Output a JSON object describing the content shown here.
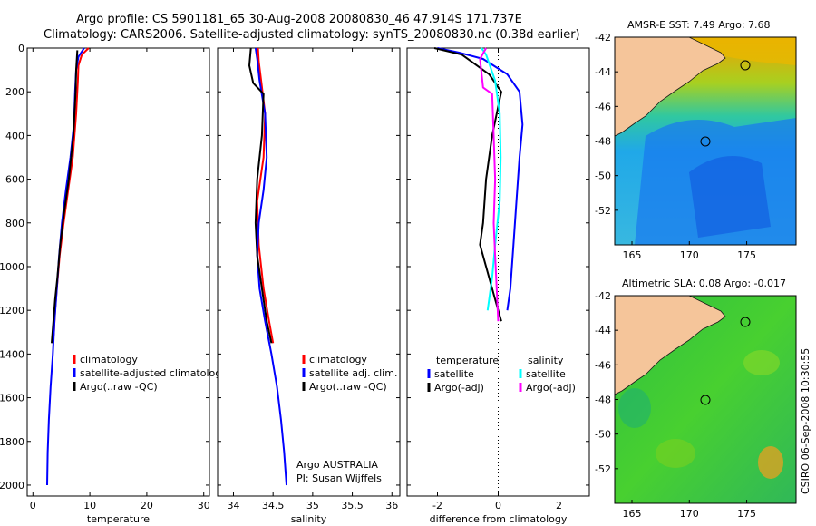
{
  "title": {
    "line1": "Argo profile: CS 5901181_65 30-Aug-2008 20080830_46 47.914S 171.737E",
    "line2": "Climatology: CARS2006. Satellite-adjusted climatology: synTS_20080830.nc (0.38d earlier)"
  },
  "stamp": "CSIRO 06-Sep-2008 10:30:55",
  "colors": {
    "climatology": "#ff0000",
    "satellite": "#0000ff",
    "argo": "#000000",
    "salinity_satellite": "#00ffff",
    "salinity_argo": "#ff00ff"
  },
  "chart_data": [
    {
      "type": "line",
      "name": "temperature-profile",
      "xlabel": "temperature",
      "ylabel": "",
      "xlim": [
        -1,
        31
      ],
      "ylim": [
        2050,
        0
      ],
      "xticks": [
        "0",
        "10",
        "20",
        "30"
      ],
      "xtick_values": [
        0,
        10,
        20,
        30
      ],
      "yticks": [
        "0",
        "200",
        "400",
        "600",
        "800",
        "1000",
        "1200",
        "1400",
        "1600",
        "1800",
        "2000"
      ],
      "ytick_values": [
        0,
        200,
        400,
        600,
        800,
        1000,
        1200,
        1400,
        1600,
        1800,
        2000
      ],
      "legend": [
        "climatology",
        "satellite-adjusted climatology",
        "Argo(..raw -QC)"
      ],
      "series": [
        {
          "name": "climatology",
          "color": "#ff0000",
          "x": [
            9.8,
            8.6,
            8.0,
            7.9,
            7.6,
            7.0,
            6.2,
            5.4,
            4.7,
            4.2,
            3.9,
            3.7,
            3.5
          ],
          "y": [
            0,
            30,
            80,
            150,
            300,
            500,
            650,
            800,
            950,
            1100,
            1200,
            1300,
            1350
          ]
        },
        {
          "name": "satellite-adjusted climatology",
          "color": "#0000ff",
          "x": [
            9.0,
            8.0,
            7.6,
            7.4,
            7.2,
            6.6,
            5.8,
            5.1,
            4.6,
            4.2,
            3.8,
            3.5,
            3.1,
            2.8,
            2.6,
            2.5
          ],
          "y": [
            0,
            40,
            100,
            200,
            350,
            500,
            650,
            800,
            950,
            1100,
            1250,
            1400,
            1550,
            1700,
            1850,
            2000
          ]
        },
        {
          "name": "Argo(..raw -QC)",
          "color": "#000000",
          "x": [
            7.8,
            7.6,
            7.5,
            7.1,
            6.3,
            5.5,
            4.8,
            4.3,
            3.9,
            3.6,
            3.3
          ],
          "y": [
            10,
            100,
            200,
            400,
            600,
            750,
            900,
            1050,
            1150,
            1250,
            1350
          ]
        }
      ]
    },
    {
      "type": "line",
      "name": "salinity-profile",
      "xlabel": "salinity",
      "ylabel": "",
      "xlim": [
        33.8,
        36.1
      ],
      "ylim": [
        2050,
        0
      ],
      "xticks": [
        "34",
        "34.5",
        "35",
        "35.5",
        "36"
      ],
      "xtick_values": [
        34,
        34.5,
        35,
        35.5,
        36
      ],
      "legend": [
        "climatology",
        "satellite adj. clim.",
        "Argo(..raw -QC)"
      ],
      "annotation": [
        "Argo AUSTRALIA",
        "PI: Susan Wijffels"
      ],
      "series": [
        {
          "name": "climatology",
          "color": "#ff0000",
          "x": [
            34.31,
            34.32,
            34.35,
            34.4,
            34.38,
            34.3,
            34.32,
            34.38,
            34.45,
            34.5
          ],
          "y": [
            0,
            60,
            150,
            300,
            500,
            700,
            900,
            1100,
            1250,
            1350
          ]
        },
        {
          "name": "satellite adj. clim.",
          "color": "#0000ff",
          "x": [
            34.28,
            34.3,
            34.33,
            34.4,
            34.42,
            34.38,
            34.32,
            34.3,
            34.33,
            34.4,
            34.48,
            34.55,
            34.6,
            34.64,
            34.67
          ],
          "y": [
            0,
            50,
            150,
            300,
            500,
            650,
            800,
            950,
            1100,
            1250,
            1400,
            1550,
            1700,
            1850,
            2000
          ]
        },
        {
          "name": "Argo(..raw -QC)",
          "color": "#000000",
          "x": [
            34.22,
            34.2,
            34.25,
            34.38,
            34.36,
            34.3,
            34.28,
            34.3,
            34.36,
            34.42,
            34.48
          ],
          "y": [
            0,
            80,
            160,
            210,
            400,
            600,
            800,
            950,
            1100,
            1250,
            1350
          ]
        }
      ]
    },
    {
      "type": "line",
      "name": "difference-profile",
      "xlabel": "difference from climatology",
      "ylabel": "",
      "xlim": [
        -3,
        3
      ],
      "ylim": [
        2050,
        0
      ],
      "xticks": [
        "-2",
        "0",
        "2"
      ],
      "xtick_values": [
        -2,
        0,
        2
      ],
      "legend_headers": [
        "temperature",
        "salinity"
      ],
      "legend": [
        "satellite",
        "Argo(-adj)",
        "satellite",
        "Argo(-adj)"
      ],
      "series": [
        {
          "name": "temperature satellite",
          "color": "#0000ff",
          "x": [
            -2.0,
            -1.3,
            -0.5,
            0.3,
            0.7,
            0.8,
            0.7,
            0.6,
            0.5,
            0.4,
            0.3
          ],
          "y": [
            0,
            20,
            50,
            120,
            200,
            350,
            500,
            700,
            900,
            1100,
            1200
          ]
        },
        {
          "name": "temperature Argo(-adj)",
          "color": "#000000",
          "x": [
            -2.1,
            -1.2,
            -0.3,
            0.1,
            -0.2,
            -0.4,
            -0.5,
            -0.6,
            -0.4,
            -0.1,
            0.1
          ],
          "y": [
            0,
            30,
            120,
            200,
            400,
            600,
            800,
            900,
            1000,
            1150,
            1250
          ]
        },
        {
          "name": "salinity satellite",
          "color": "#00ffff",
          "x": [
            -0.55,
            -0.4,
            -0.1,
            0.05,
            0.08,
            0.05,
            -0.1,
            -0.2,
            -0.35
          ],
          "y": [
            0,
            30,
            150,
            300,
            500,
            700,
            900,
            1050,
            1200
          ]
        },
        {
          "name": "salinity Argo(-adj)",
          "color": "#ff00ff",
          "x": [
            -0.4,
            -0.6,
            -0.5,
            -0.2,
            -0.15,
            -0.1,
            -0.15,
            -0.1,
            -0.05,
            0.0
          ],
          "y": [
            0,
            50,
            180,
            210,
            400,
            600,
            800,
            950,
            1100,
            1250
          ]
        }
      ]
    },
    {
      "type": "heatmap",
      "name": "sst-map",
      "title": "AMSR-E SST: 7.49 Argo: 7.68",
      "xlim": [
        163.5,
        179.3
      ],
      "ylim": [
        -54,
        -42
      ],
      "xticks": [
        "165",
        "170",
        "175"
      ],
      "xtick_values": [
        165,
        170,
        175
      ],
      "yticks": [
        "-42",
        "-44",
        "-46",
        "-48",
        "-50",
        "-52"
      ],
      "ytick_values": [
        -42,
        -44,
        -46,
        -48,
        -50,
        -52
      ],
      "argo_position": {
        "lon": 171.737,
        "lat": -47.914
      }
    },
    {
      "type": "heatmap",
      "name": "sla-map",
      "title": "Altimetric SLA: 0.08 Argo: -0.017",
      "xlim": [
        163.5,
        179.3
      ],
      "ylim": [
        -54,
        -42
      ],
      "xticks": [
        "165",
        "170",
        "175"
      ],
      "xtick_values": [
        165,
        170,
        175
      ],
      "yticks": [
        "-42",
        "-44",
        "-46",
        "-48",
        "-50",
        "-52"
      ],
      "ytick_values": [
        -42,
        -44,
        -46,
        -48,
        -50,
        -52
      ],
      "argo_position": {
        "lon": 171.737,
        "lat": -47.914
      }
    }
  ]
}
